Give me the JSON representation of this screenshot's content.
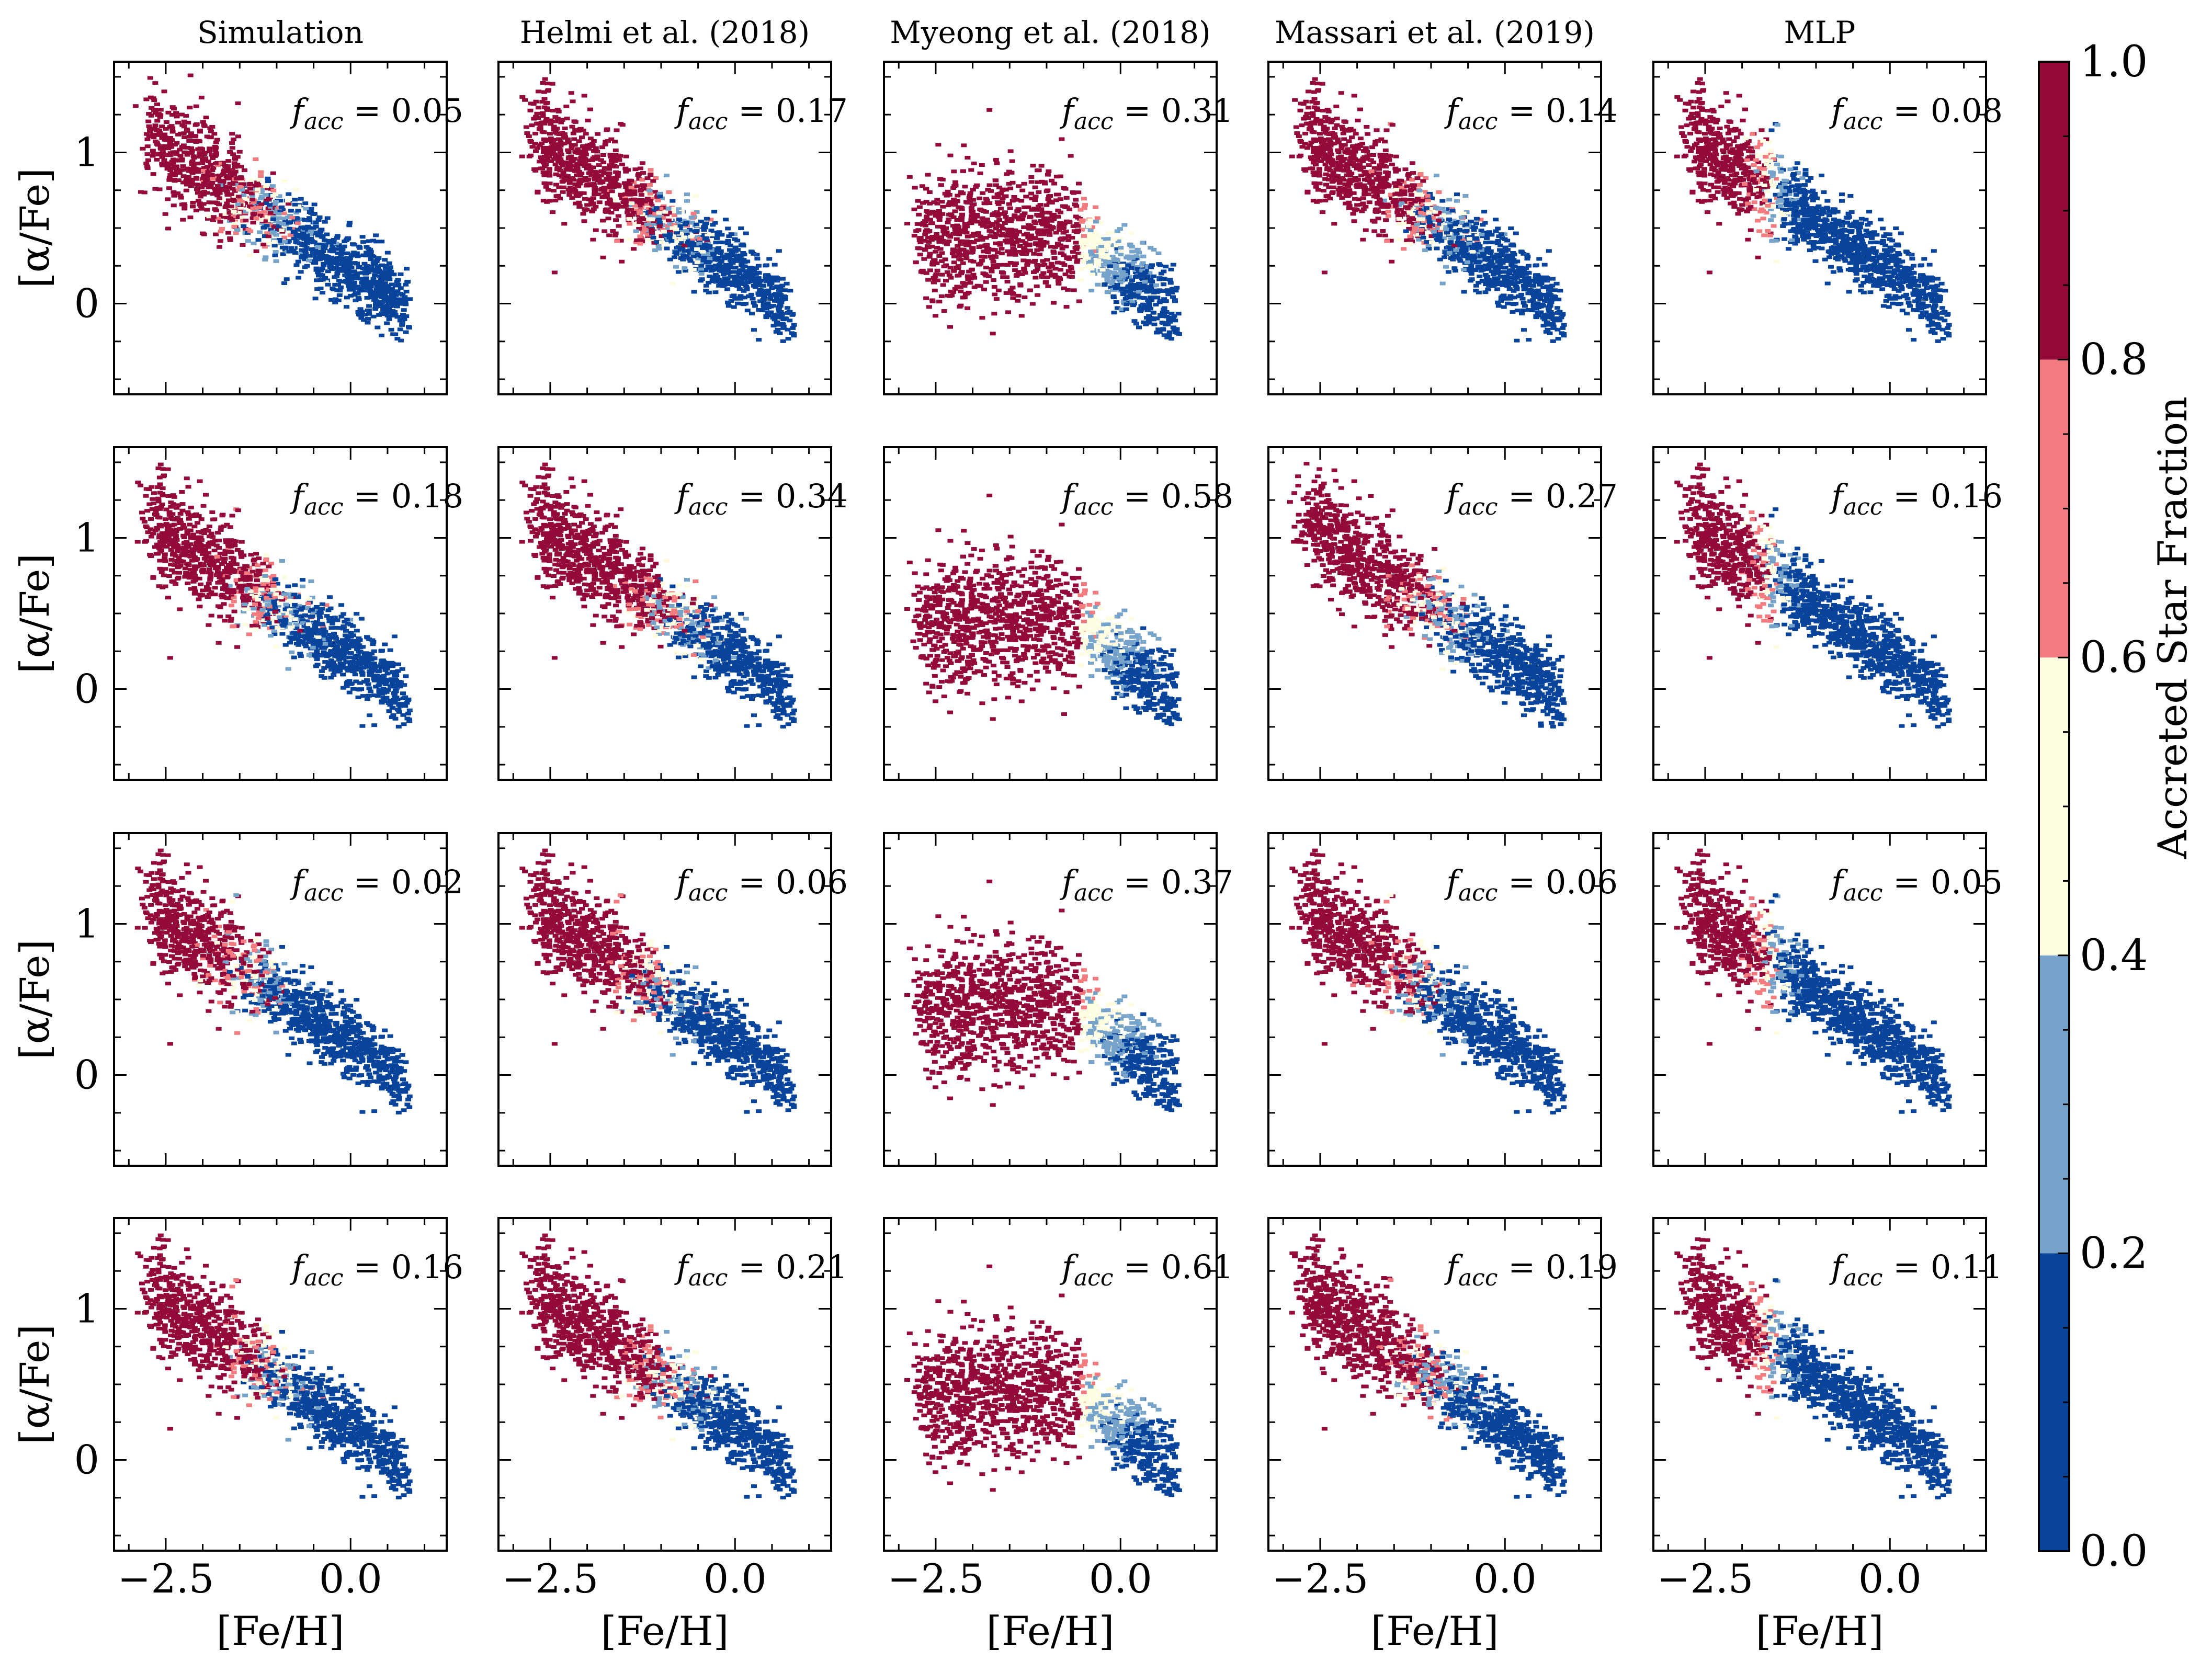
{
  "chart_data": {
    "type": "scatter",
    "description_kind": "hexbin grid of [alpha/Fe] vs [Fe/H], colored by accreted star fraction",
    "columns": [
      "Simulation",
      "Helmi et al. (2018)",
      "Myeong et al. (2018)",
      "Massari et al. (2019)",
      "MLP"
    ],
    "xlabel": "[Fe/H]",
    "ylabel": "[α/Fe]",
    "xlim": [
      -3.2,
      1.3
    ],
    "ylim": [
      -0.6,
      1.6
    ],
    "xticks": [
      -2.5,
      0.0
    ],
    "xtick_labels": [
      "−2.5",
      "0.0"
    ],
    "yticks": [
      0,
      1
    ],
    "ytick_labels": [
      "0",
      "1"
    ],
    "facc_label": "f",
    "facc_sub": "acc",
    "facc_values": [
      [
        "0.05",
        "0.17",
        "0.31",
        "0.14",
        "0.08"
      ],
      [
        "0.18",
        "0.34",
        "0.58",
        "0.27",
        "0.16"
      ],
      [
        "0.02",
        "0.06",
        "0.37",
        "0.06",
        "0.05"
      ],
      [
        "0.16",
        "0.21",
        "0.61",
        "0.19",
        "0.11"
      ]
    ],
    "colorbar": {
      "label": "Accreted Star Fraction",
      "ticks": [
        "0.0",
        "0.2",
        "0.4",
        "0.6",
        "0.8",
        "1.0"
      ],
      "levels": [
        0.0,
        0.2,
        0.4,
        0.6,
        0.8,
        1.0
      ],
      "colors": [
        "#08449c",
        "#76a3c9",
        "#fdfce0",
        "#f27b7f",
        "#930a3b"
      ]
    }
  }
}
